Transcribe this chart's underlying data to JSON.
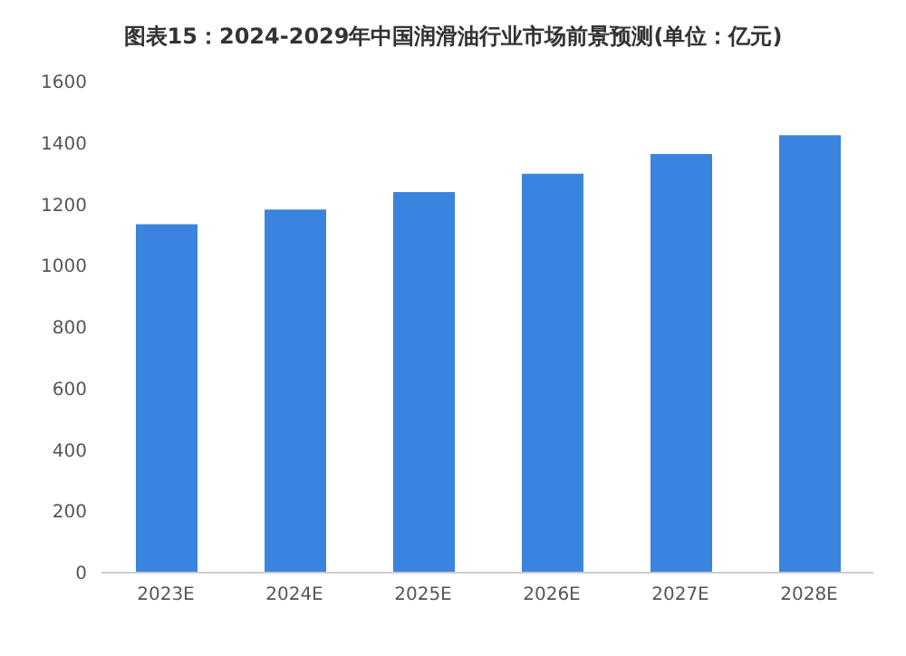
{
  "chart_data": {
    "type": "bar",
    "title": "图表15：2024-2029年中国润滑油行业市场前景预测(单位：亿元)",
    "categories": [
      "2023E",
      "2024E",
      "2025E",
      "2026E",
      "2027E",
      "2028E"
    ],
    "values": [
      1135,
      1183,
      1240,
      1300,
      1364,
      1425
    ],
    "color": "#3a84e0",
    "ylim": [
      0,
      1600
    ],
    "yticks": [
      0,
      200,
      400,
      600,
      800,
      1000,
      1200,
      1400,
      1600
    ],
    "grid": false
  }
}
